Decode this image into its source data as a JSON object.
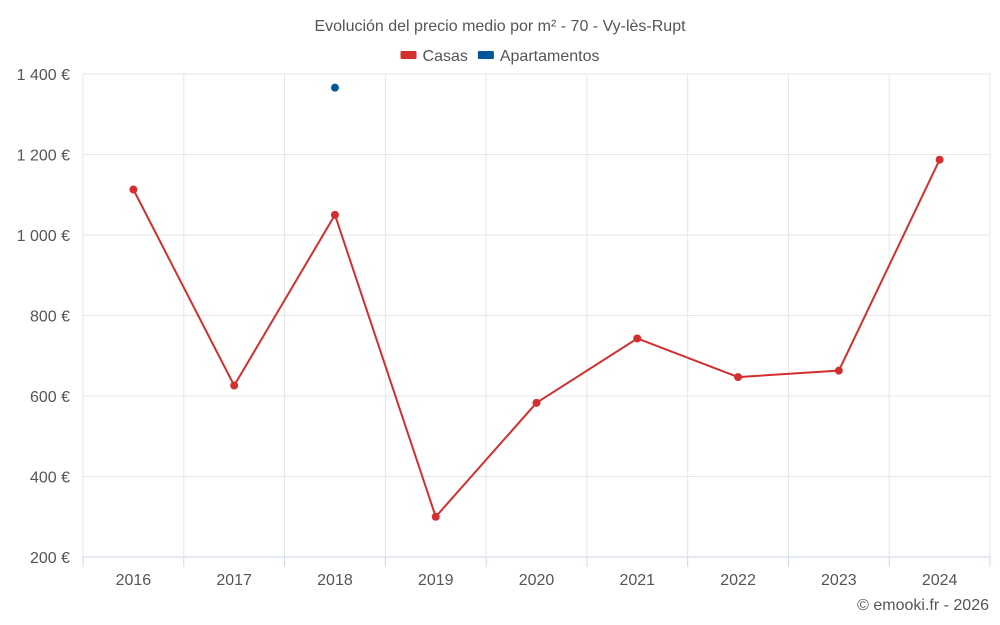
{
  "chart_data": {
    "type": "line",
    "title": "Evolución del precio medio por m² - 70 - Vy-lès-Rupt",
    "categories": [
      "2016",
      "2017",
      "2018",
      "2019",
      "2020",
      "2021",
      "2022",
      "2023",
      "2024"
    ],
    "series": [
      {
        "name": "Casas",
        "color": "#d32f2f",
        "values": [
          1113,
          626,
          1050,
          300,
          583,
          743,
          647,
          663,
          1187
        ]
      },
      {
        "name": "Apartamentos",
        "color": "#01579b",
        "values": [
          null,
          null,
          1366,
          null,
          null,
          null,
          null,
          null,
          null
        ]
      }
    ],
    "ylim": [
      200,
      1400
    ],
    "yticks": [
      200,
      400,
      600,
      800,
      1000,
      1200,
      1400
    ],
    "ytick_labels": [
      "200 €",
      "400 €",
      "600 €",
      "800 €",
      "1 000 €",
      "1 200 €",
      "1 400 €"
    ],
    "xlabel": "",
    "ylabel": "",
    "grid": true,
    "legend": "top-center"
  },
  "credit": "© emooki.fr - 2026"
}
